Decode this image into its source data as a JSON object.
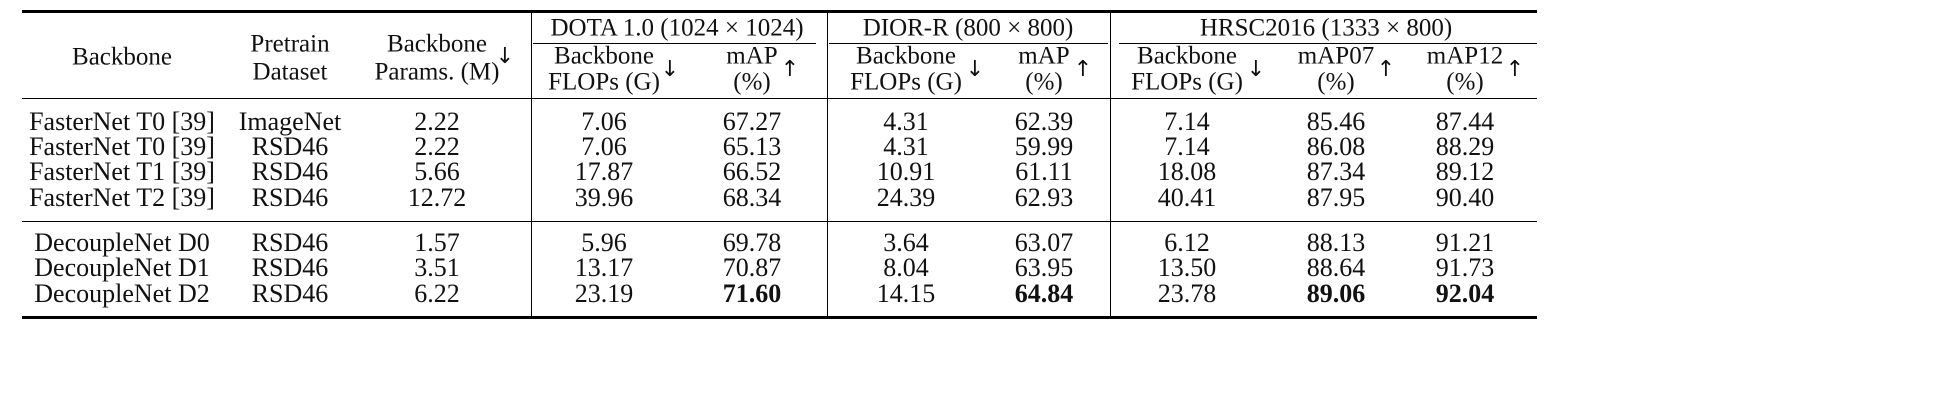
{
  "table": {
    "columns": {
      "backbone": "Backbone",
      "pretrain_line1": "Pretrain",
      "pretrain_line2": "Dataset",
      "params_line1": "Backbone",
      "params_line2": "Params. (M)",
      "flops_line1": "Backbone",
      "flops_line2": "FLOPs (G)",
      "map_line1": "mAP",
      "map_line2": "(%)",
      "map07_line1": "mAP07",
      "map12_line1": "mAP12",
      "down_arrow": "↓",
      "up_arrow": "↑"
    },
    "groups": [
      "DOTA 1.0 (1024 × 1024)",
      "DIOR-R (800 × 800)",
      "HRSC2016 (1333 × 800)"
    ],
    "rows": [
      [
        "FasterNet T0 [39]",
        "ImageNet",
        "2.22",
        "7.06",
        "67.27",
        "4.31",
        "62.39",
        "7.14",
        "85.46",
        "87.44"
      ],
      [
        "FasterNet T0 [39]",
        "RSD46",
        "2.22",
        "7.06",
        "65.13",
        "4.31",
        "59.99",
        "7.14",
        "86.08",
        "88.29"
      ],
      [
        "FasterNet T1 [39]",
        "RSD46",
        "5.66",
        "17.87",
        "66.52",
        "10.91",
        "61.11",
        "18.08",
        "87.34",
        "89.12"
      ],
      [
        "FasterNet T2 [39]",
        "RSD46",
        "12.72",
        "39.96",
        "68.34",
        "24.39",
        "62.93",
        "40.41",
        "87.95",
        "90.40"
      ],
      [
        "DecoupleNet D0",
        "RSD46",
        "1.57",
        "5.96",
        "69.78",
        "3.64",
        "63.07",
        "6.12",
        "88.13",
        "91.21"
      ],
      [
        "DecoupleNet D1",
        "RSD46",
        "3.51",
        "13.17",
        "70.87",
        "8.04",
        "63.95",
        "13.50",
        "88.64",
        "91.73"
      ],
      [
        "DecoupleNet D2",
        "RSD46",
        "6.22",
        "23.19",
        "71.60",
        "14.15",
        "64.84",
        "23.78",
        "89.06",
        "92.04"
      ]
    ],
    "bold_cells": [
      [
        6,
        4
      ],
      [
        6,
        6
      ],
      [
        6,
        8
      ],
      [
        6,
        9
      ]
    ]
  }
}
